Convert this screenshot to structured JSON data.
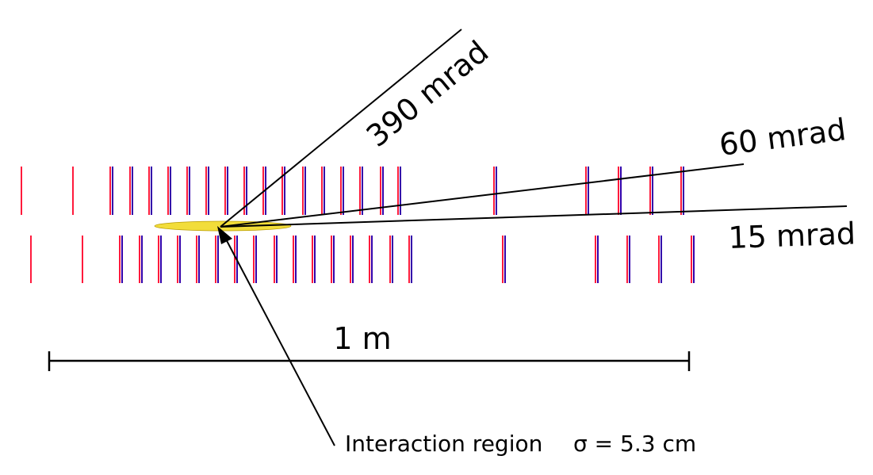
{
  "labels": {
    "angle_390": "390 mrad",
    "angle_60": "60 mrad",
    "angle_15": "15 mrad",
    "scale": "1 m",
    "interaction": "Interaction region",
    "sigma": "σ = 5.3 cm"
  },
  "colors": {
    "strip_red": "#ff1a3c",
    "strip_blue": "#3300aa",
    "interaction_region": "#f2dd3a",
    "lines": "#000000",
    "background": "#ffffff"
  },
  "stations": {
    "count_per_side": 19,
    "pairs_per_side": 17,
    "singles_per_side": 2
  }
}
